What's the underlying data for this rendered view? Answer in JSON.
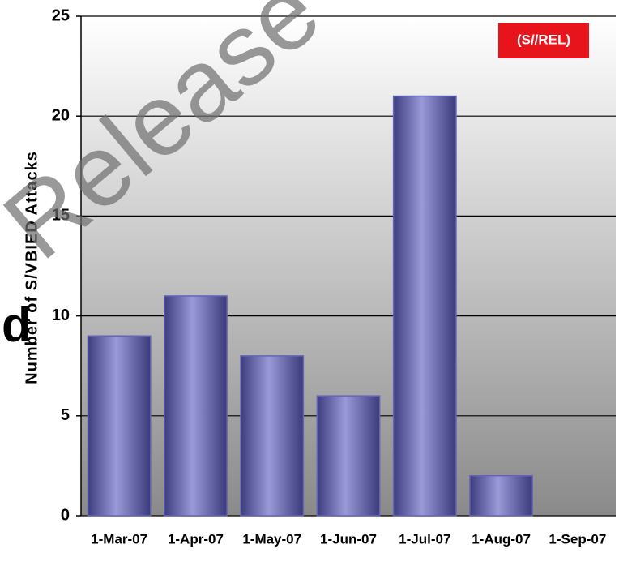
{
  "chart_data": {
    "type": "bar",
    "y_axis_label": "Number of S/VBIED Attacks",
    "badge": "(S//REL)",
    "watermark": "Release",
    "side_fragment": "d",
    "categories": [
      "1-Mar-07",
      "1-Apr-07",
      "1-May-07",
      "1-Jun-07",
      "1-Jul-07",
      "1-Aug-07",
      "1-Sep-07"
    ],
    "values": [
      9,
      11,
      8,
      6,
      21,
      2,
      null
    ],
    "color": "#6464b4",
    "badge_color": "#e8141c",
    "ylim": [
      0,
      25
    ],
    "yticks": [
      0,
      5,
      10,
      15,
      20,
      25
    ],
    "grid": true
  }
}
